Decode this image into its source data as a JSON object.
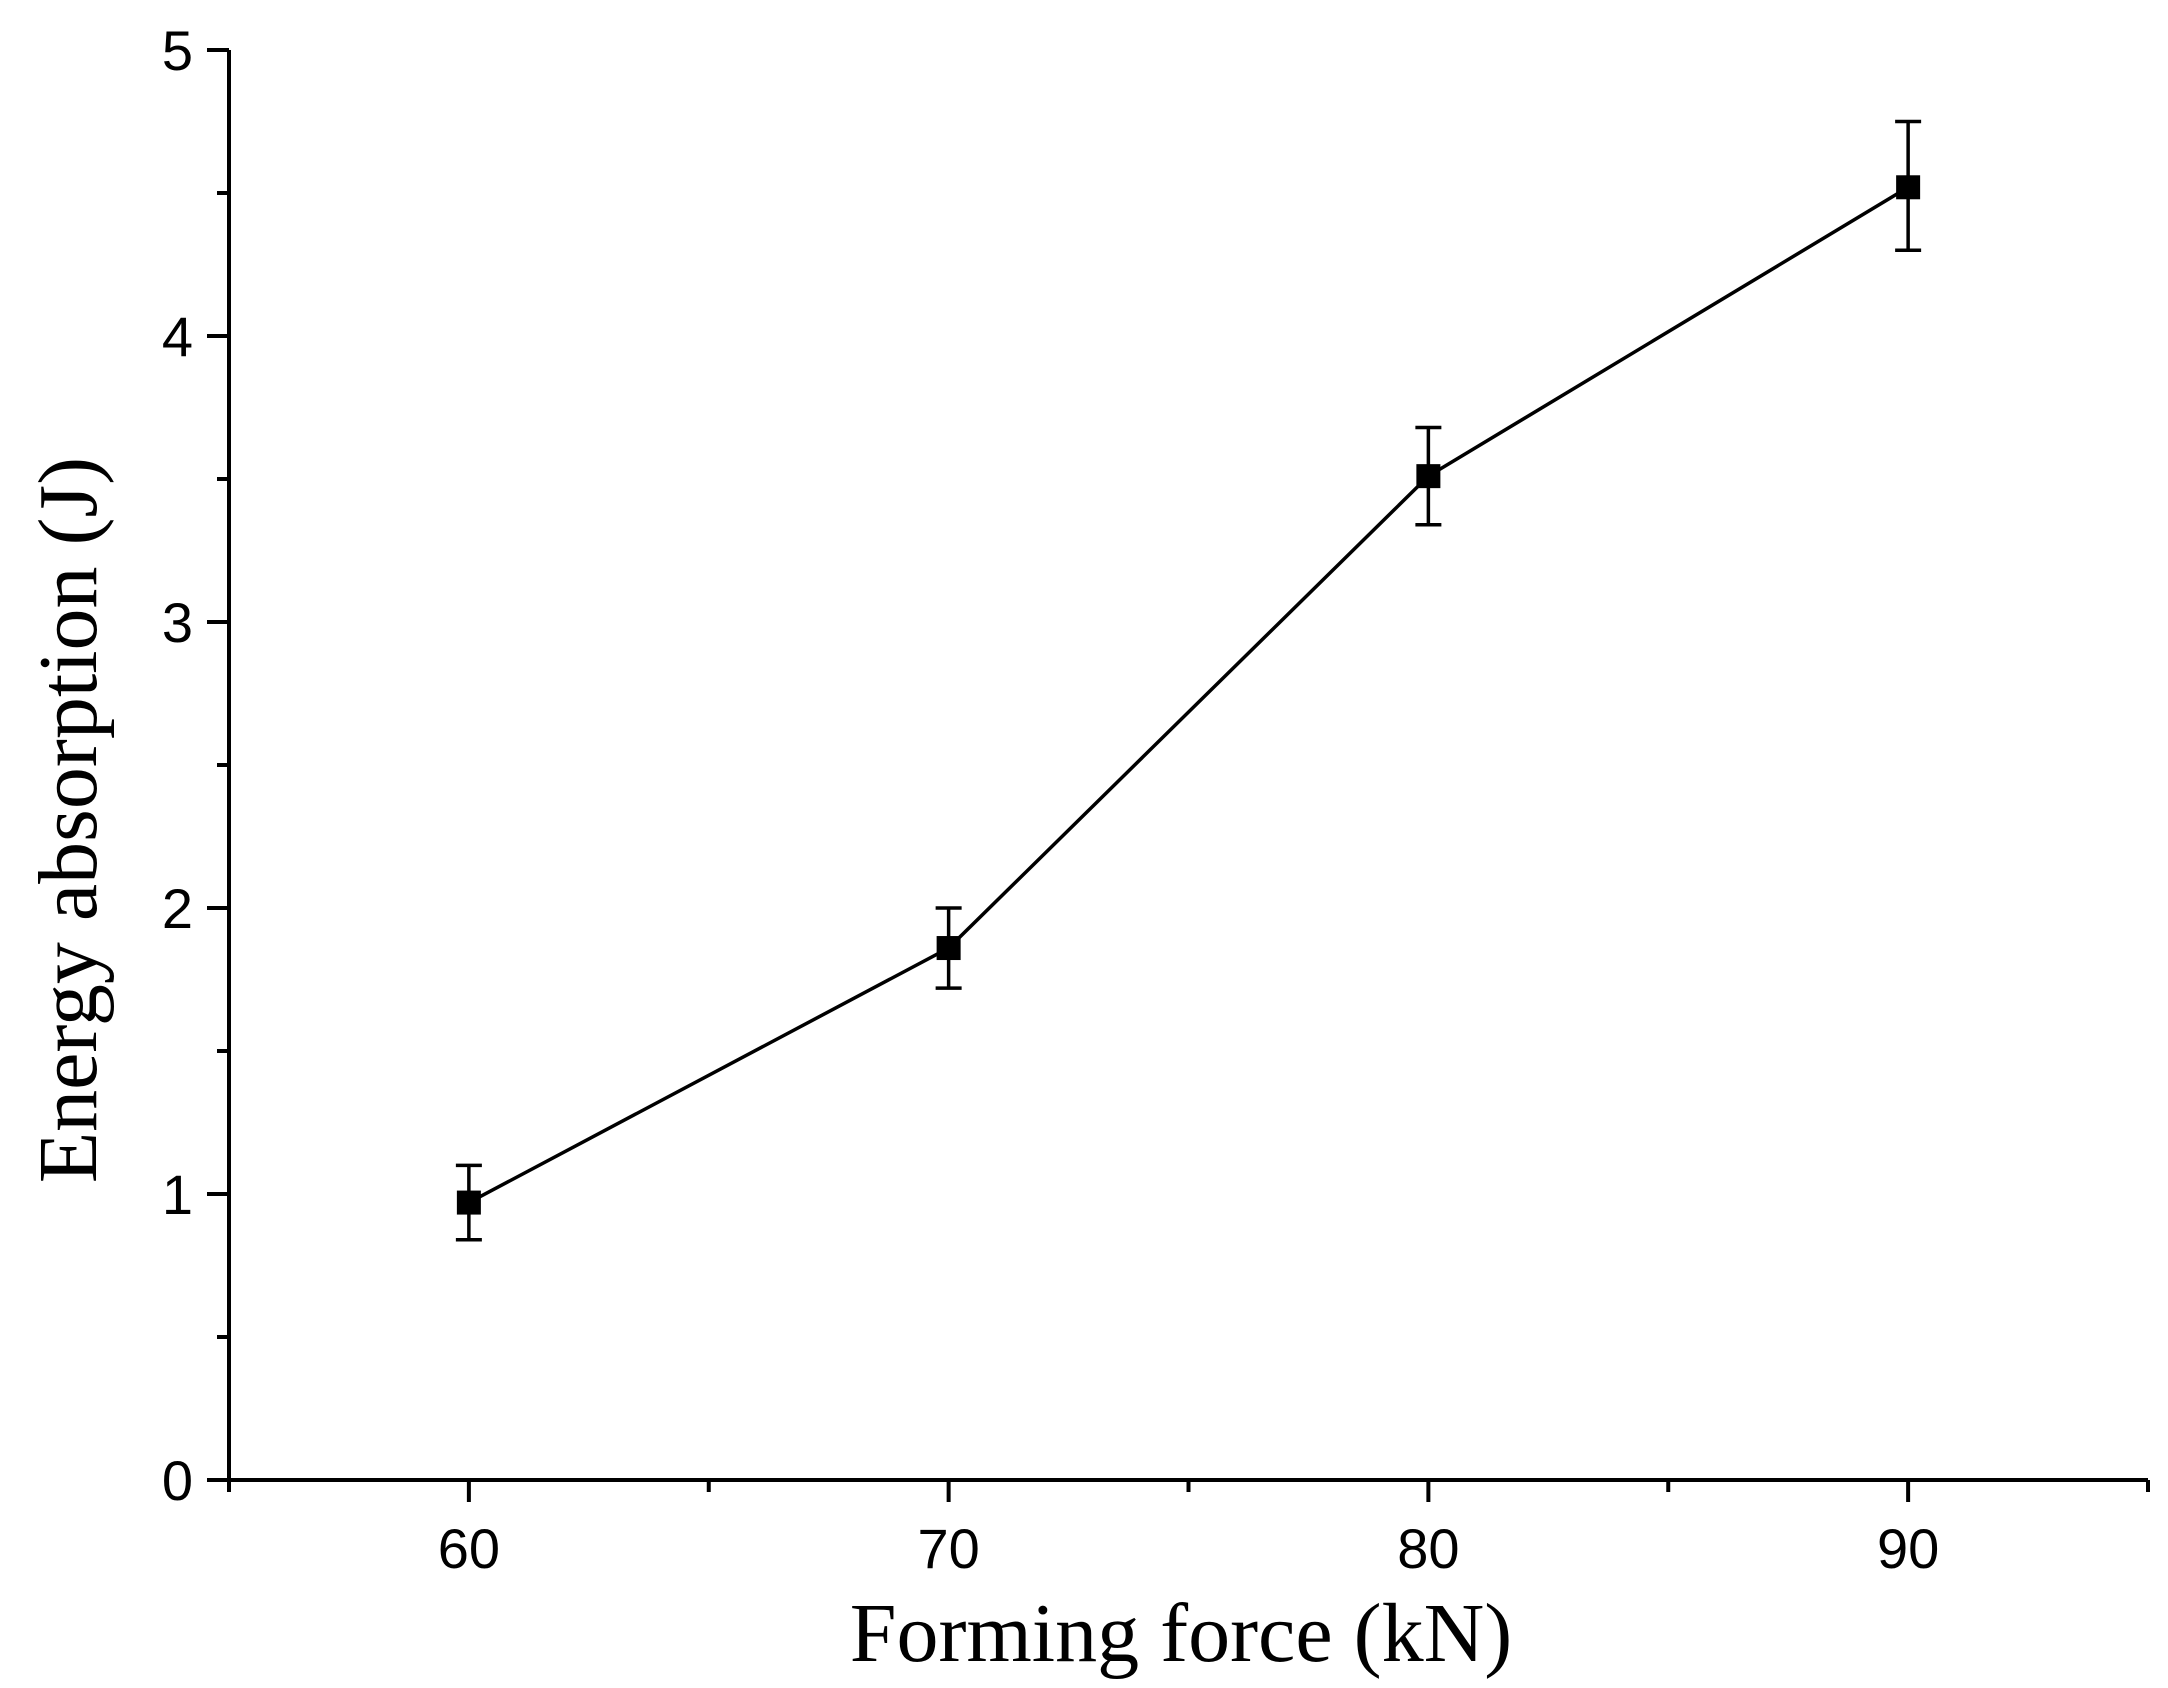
{
  "chart_data": {
    "type": "line",
    "xlabel": "Forming force (kN)",
    "ylabel": "Energy absorption (J)",
    "xlim": [
      55,
      95
    ],
    "ylim": [
      0,
      5
    ],
    "x_ticks": [
      60,
      70,
      80,
      90
    ],
    "x_tick_labels": [
      "60",
      "70",
      "80",
      "90"
    ],
    "y_ticks": [
      0,
      1,
      2,
      3,
      4,
      5
    ],
    "y_tick_labels": [
      "0",
      "1",
      "2",
      "3",
      "4",
      "5"
    ],
    "grid": false,
    "series": [
      {
        "x": [
          60,
          70,
          80,
          90
        ],
        "y": [
          0.97,
          1.86,
          3.51,
          4.52
        ],
        "error_upper": [
          1.1,
          2.0,
          3.68,
          4.75
        ],
        "error_lower": [
          0.84,
          1.72,
          3.34,
          4.3
        ],
        "marker": "square",
        "color": "#000000"
      }
    ]
  }
}
